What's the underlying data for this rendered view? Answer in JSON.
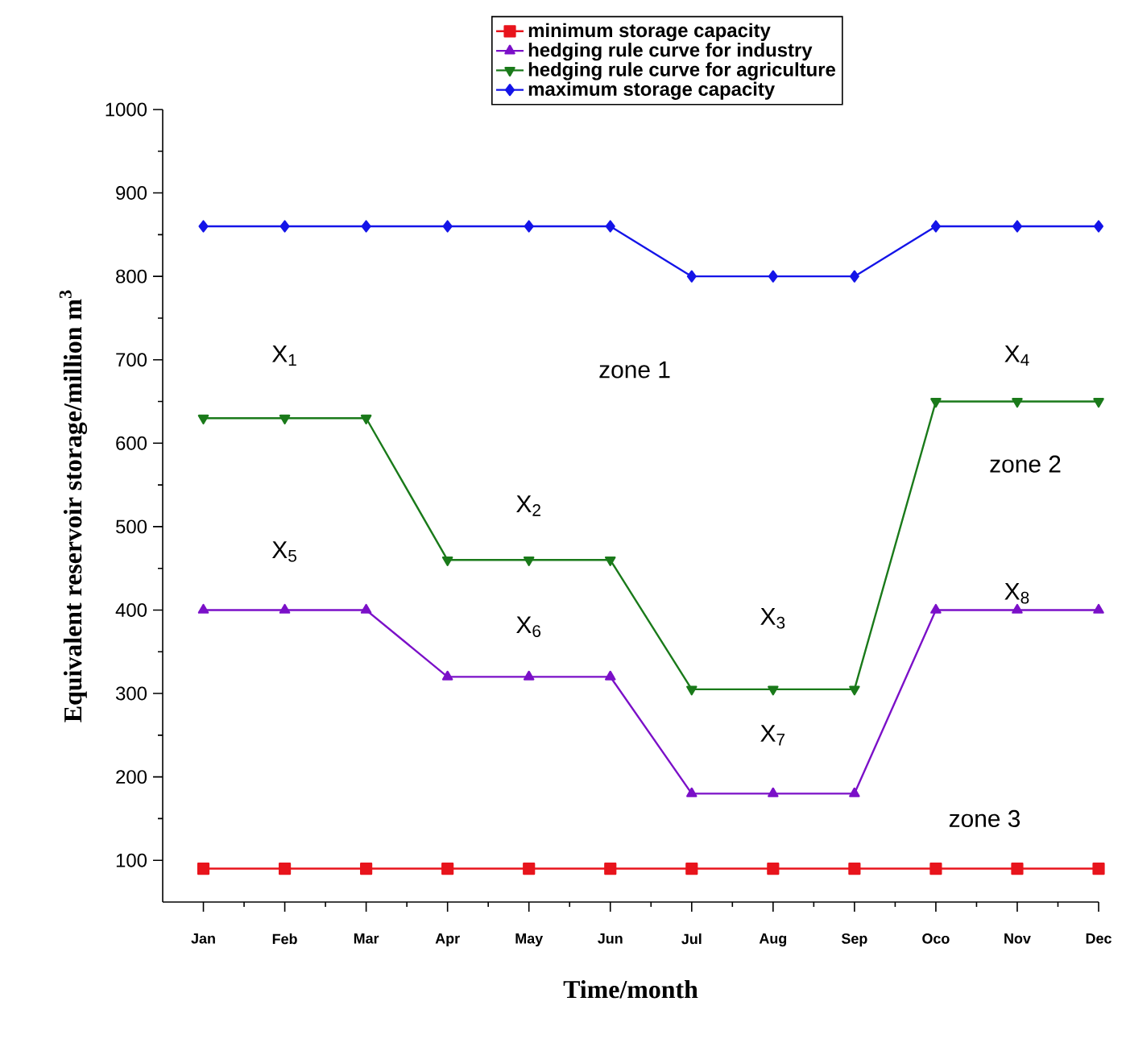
{
  "chart_data": {
    "type": "line",
    "xlabel": "Time/month",
    "ylabel": "Equivalent reservoir storage/million m$^{3}$",
    "categories": [
      "Jan",
      "Feb",
      "Mar",
      "Apr",
      "May",
      "Jun",
      "Jul",
      "Aug",
      "Sep",
      "Oco",
      "Nov",
      "Dec"
    ],
    "series": [
      {
        "name": "minimum storage capacity",
        "color": "#e8141c",
        "marker": "square",
        "values": [
          90,
          90,
          90,
          90,
          90,
          90,
          90,
          90,
          90,
          90,
          90,
          90
        ]
      },
      {
        "name": "hedging rule curve for industry",
        "color": "#7b10c8",
        "marker": "triangle",
        "values": [
          400,
          400,
          400,
          320,
          320,
          320,
          180,
          180,
          180,
          400,
          400,
          400
        ]
      },
      {
        "name": "hedging rule curve for agriculture",
        "color": "#1a7a1a",
        "marker": "triangle-down",
        "values": [
          630,
          630,
          630,
          460,
          460,
          460,
          305,
          305,
          305,
          650,
          650,
          650
        ]
      },
      {
        "name": "maximum storage capacity",
        "color": "#1414e8",
        "marker": "diamond",
        "values": [
          860,
          860,
          860,
          860,
          860,
          860,
          800,
          800,
          800,
          860,
          860,
          860
        ]
      }
    ],
    "ylim": [
      50,
      1000
    ],
    "yticks": [
      100,
      200,
      300,
      400,
      500,
      600,
      700,
      800,
      900,
      1000
    ],
    "legend": "top",
    "grid": false,
    "annotations": [
      "X$_{1}$",
      "X$_{2}$",
      "X$_{3}$",
      "X$_{4}$",
      "X$_{5}$",
      "X$_{6}$",
      "X$_{7}$",
      "X$_{8}$",
      "zone 1",
      "zone 2",
      "zone 3"
    ]
  }
}
